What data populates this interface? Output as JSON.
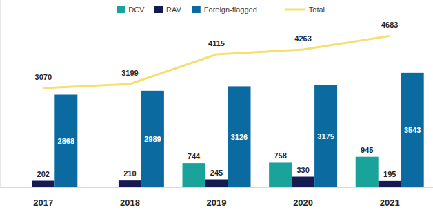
{
  "chart_data": {
    "type": "bar",
    "categories": [
      "2017",
      "2018",
      "2019",
      "2020",
      "2021"
    ],
    "series": [
      {
        "name": "DCV",
        "type": "bar",
        "color": "#1aa39a",
        "values": [
          null,
          null,
          744,
          758,
          945
        ]
      },
      {
        "name": "RAV",
        "type": "bar",
        "color": "#161a52",
        "values": [
          202,
          210,
          245,
          330,
          195
        ]
      },
      {
        "name": "Foreign-flagged",
        "type": "bar",
        "color": "#0b6a9f",
        "values": [
          2868,
          2989,
          3126,
          3175,
          3543
        ]
      },
      {
        "name": "Total",
        "type": "line",
        "color": "#f6de70",
        "values": [
          3070,
          3199,
          4115,
          4263,
          4683
        ]
      }
    ],
    "ylim": [
      0,
      5800
    ],
    "tick_labels": "x",
    "data_labels": true,
    "legend": "top",
    "grid": false
  }
}
